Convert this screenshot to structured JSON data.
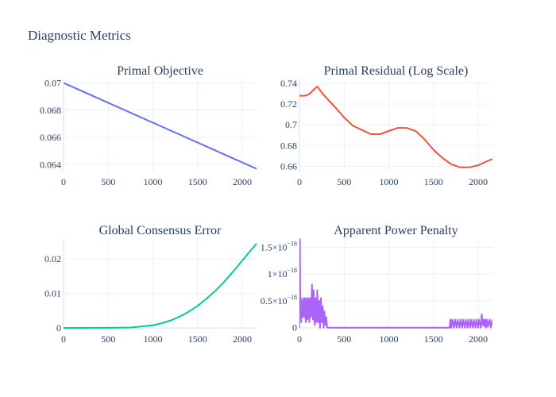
{
  "figure": {
    "title": "Diagnostic Metrics"
  },
  "chart_data": [
    {
      "type": "line",
      "title": "Primal Objective",
      "xlabel": "",
      "ylabel": "",
      "xlim": [
        0,
        2160
      ],
      "ylim": [
        0.0635,
        0.0702
      ],
      "x_ticks": [
        0,
        500,
        1000,
        1500,
        2000
      ],
      "x_tick_labels": [
        "0",
        "500",
        "1000",
        "1500",
        "2000"
      ],
      "y_ticks": [
        0.064,
        0.066,
        0.068,
        0.07
      ],
      "y_tick_labels": [
        "0.064",
        "0.066",
        "0.068",
        "0.07"
      ],
      "grid": true,
      "series": [
        {
          "color": "#636efa",
          "x": [
            0,
            2160
          ],
          "y": [
            0.07,
            0.0637
          ]
        }
      ]
    },
    {
      "type": "line",
      "title": "Primal Residual (Log Scale)",
      "xlabel": "",
      "ylabel": "",
      "xlim": [
        0,
        2160
      ],
      "ylim": [
        0.655,
        0.743
      ],
      "x_ticks": [
        0,
        500,
        1000,
        1500,
        2000
      ],
      "x_tick_labels": [
        "0",
        "500",
        "1000",
        "1500",
        "2000"
      ],
      "y_ticks": [
        0.66,
        0.68,
        0.7,
        0.72,
        0.74
      ],
      "y_tick_labels": [
        "0.66",
        "0.68",
        "0.7",
        "0.72",
        "0.74"
      ],
      "grid": true,
      "series": [
        {
          "color": "#ef553b",
          "x": [
            0,
            50,
            100,
            150,
            200,
            250,
            300,
            400,
            500,
            600,
            700,
            800,
            900,
            1000,
            1100,
            1200,
            1300,
            1400,
            1500,
            1600,
            1700,
            1800,
            1900,
            2000,
            2100,
            2160
          ],
          "y": [
            0.728,
            0.728,
            0.729,
            0.733,
            0.737,
            0.731,
            0.726,
            0.717,
            0.707,
            0.699,
            0.695,
            0.691,
            0.691,
            0.694,
            0.697,
            0.697,
            0.694,
            0.686,
            0.676,
            0.668,
            0.662,
            0.659,
            0.659,
            0.661,
            0.665,
            0.667
          ]
        }
      ]
    },
    {
      "type": "line",
      "title": "Global Consensus Error",
      "xlabel": "",
      "ylabel": "",
      "xlim": [
        0,
        2160
      ],
      "ylim": [
        -0.0002,
        0.0255
      ],
      "x_ticks": [
        0,
        500,
        1000,
        1500,
        2000
      ],
      "x_tick_labels": [
        "0",
        "500",
        "1000",
        "1500",
        "2000"
      ],
      "y_ticks": [
        0,
        0.01,
        0.02
      ],
      "y_tick_labels": [
        "0",
        "0.01",
        "0.02"
      ],
      "grid": true,
      "series": [
        {
          "color": "#00cc96",
          "x": [
            0,
            200,
            400,
            600,
            750,
            900,
            1000,
            1100,
            1200,
            1300,
            1400,
            1500,
            1600,
            1700,
            1800,
            1900,
            2000,
            2100,
            2160
          ],
          "y": [
            0,
            3e-05,
            6e-05,
            0.0001,
            0.00015,
            0.0005,
            0.0008,
            0.0014,
            0.0022,
            0.0033,
            0.0047,
            0.0064,
            0.0085,
            0.0108,
            0.0134,
            0.0164,
            0.0195,
            0.0226,
            0.0244
          ]
        }
      ]
    },
    {
      "type": "line",
      "title": "Apparent Power Penalty",
      "xlabel": "",
      "ylabel": "",
      "xlim": [
        0,
        2160
      ],
      "ylim": [
        -2e-20,
        1.64e-18
      ],
      "x_ticks": [
        0,
        500,
        1000,
        1500,
        2000
      ],
      "x_tick_labels": [
        "0",
        "500",
        "1000",
        "1500",
        "2000"
      ],
      "y_ticks": [
        0,
        5e-19,
        1e-18,
        1.5e-18
      ],
      "y_tick_labels": [
        {
          "base": "0",
          "exp": ""
        },
        {
          "base": "0.5×10",
          "exp": "−18"
        },
        {
          "base": "1×10",
          "exp": "−18"
        },
        {
          "base": "1.5×10",
          "exp": "−18"
        }
      ],
      "grid": true,
      "series": [
        {
          "color": "#ab63fa",
          "x": [
            0,
            5,
            10,
            15,
            20,
            25,
            30,
            40,
            50,
            60,
            70,
            80,
            90,
            100,
            110,
            120,
            130,
            140,
            150,
            160,
            170,
            180,
            190,
            200,
            210,
            220,
            230,
            240,
            250,
            260,
            270,
            280,
            290,
            300,
            310,
            320,
            1650,
            1680,
            1690,
            1700,
            1710,
            1730,
            1740,
            1760,
            1770,
            1790,
            1800,
            1820,
            1830,
            1850,
            1860,
            1880,
            1890,
            1910,
            1920,
            1940,
            1950,
            1970,
            1980,
            2000,
            2010,
            2030,
            2040,
            2050,
            2060,
            2070,
            2080,
            2090,
            2100,
            2110,
            2130,
            2140,
            2160
          ],
          "y": [
            0,
            1.65e-18,
            2e-19,
            5.5e-19,
            1e-19,
            5e-19,
            2e-19,
            5.5e-19,
            2e-19,
            5.5e-19,
            1e-19,
            5.5e-19,
            1.5e-19,
            5.5e-19,
            1e-19,
            5.5e-19,
            2e-19,
            8e-19,
            1.5e-19,
            7e-19,
            5e-20,
            5.5e-19,
            1e-19,
            7e-19,
            1e-19,
            5e-19,
            0,
            5.5e-19,
            1e-19,
            4e-19,
            0,
            3e-19,
            5e-20,
            2e-19,
            0,
            0,
            0,
            0,
            1.5e-19,
            0,
            1.5e-19,
            0,
            1.5e-19,
            0,
            1.5e-19,
            0,
            1.5e-19,
            0,
            1.5e-19,
            0,
            1.5e-19,
            0,
            1.5e-19,
            0,
            1.5e-19,
            0,
            1.5e-19,
            0,
            1.5e-19,
            0,
            1.5e-19,
            0,
            2.5e-19,
            5e-20,
            1.5e-19,
            2e-20,
            1.5e-19,
            0,
            1.5e-19,
            2e-20,
            1.5e-19,
            0,
            1.5e-19
          ]
        }
      ]
    }
  ]
}
